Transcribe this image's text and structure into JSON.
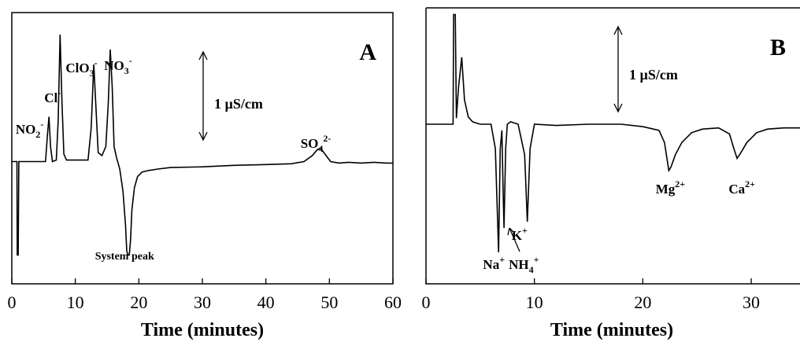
{
  "chart_data": [
    {
      "type": "line",
      "panel": "A",
      "xlabel": "Time (minutes)",
      "ylabel": "",
      "xlim": [
        0,
        60
      ],
      "xticks": [
        0,
        10,
        20,
        30,
        40,
        50,
        60
      ],
      "scale_bar": "1 µS/cm",
      "trace": {
        "x": [
          0,
          0.8,
          0.85,
          1.0,
          1.1,
          1.3,
          5.3,
          5.6,
          5.85,
          6.1,
          6.4,
          7.0,
          7.3,
          7.6,
          7.9,
          8.2,
          8.6,
          12.0,
          12.5,
          12.9,
          13.2,
          13.6,
          14.2,
          14.8,
          15.2,
          15.5,
          15.8,
          16.1,
          16.5,
          17.0,
          17.5,
          17.9,
          18.1,
          18.3,
          18.5,
          18.7,
          18.9,
          19.3,
          19.8,
          20.5,
          21.5,
          23.0,
          25,
          30,
          35,
          40,
          44,
          46,
          47.3,
          48.1,
          48.6,
          49.3,
          50.2,
          51.5,
          53,
          55,
          57,
          59,
          60
        ],
        "y": [
          0.1,
          0.1,
          -1.15,
          -1.15,
          0.1,
          0.1,
          0.1,
          0.45,
          0.7,
          0.3,
          0.1,
          0.12,
          0.65,
          1.8,
          0.9,
          0.2,
          0.12,
          0.12,
          0.55,
          1.4,
          0.9,
          0.22,
          0.18,
          0.3,
          0.9,
          1.6,
          1.1,
          0.3,
          0.15,
          0.0,
          -0.3,
          -0.75,
          -1.1,
          -1.15,
          -1.15,
          -0.95,
          -0.55,
          -0.25,
          -0.1,
          -0.04,
          -0.02,
          0.0,
          0.02,
          0.03,
          0.05,
          0.06,
          0.07,
          0.1,
          0.18,
          0.26,
          0.28,
          0.2,
          0.1,
          0.08,
          0.09,
          0.08,
          0.09,
          0.08,
          0.08
        ]
      },
      "annotations": [
        {
          "text": "NO",
          "sub": "2",
          "sup": "-",
          "x": 6.0
        },
        {
          "text": "Cl",
          "sub": "",
          "sup": "-",
          "x": 7.9
        },
        {
          "text": "ClO",
          "sub": "3",
          "sup": "-",
          "x": 13.2
        },
        {
          "text": "NO",
          "sub": "3",
          "sup": "-",
          "x": 15.5
        },
        {
          "text": "SO",
          "sub": "4",
          "sup": "2-",
          "x": 48.6
        },
        {
          "text": "System peak",
          "sub": "",
          "sup": "",
          "x": 18.5
        }
      ]
    },
    {
      "type": "line",
      "panel": "B",
      "xlabel": "Time (minutes)",
      "ylabel": "",
      "xlim": [
        0,
        34.5
      ],
      "xticks": [
        0,
        10,
        20,
        30
      ],
      "scale_bar": "1 µS/cm",
      "trace": {
        "x": [
          0,
          2.5,
          2.55,
          2.7,
          2.8,
          3.0,
          3.3,
          3.55,
          3.9,
          4.3,
          5,
          6,
          6.4,
          6.7,
          6.85,
          7.0,
          7.1,
          7.2,
          7.35,
          7.5,
          7.8,
          8.5,
          9.1,
          9.35,
          9.6,
          10.0,
          12,
          15,
          18,
          20,
          21.5,
          22.0,
          22.4,
          22.6,
          23.0,
          23.6,
          24.5,
          25.5,
          27,
          28.0,
          28.4,
          28.7,
          29.0,
          29.6,
          30.5,
          31.5,
          33,
          34.5
        ],
        "y": [
          0.0,
          0.0,
          0.9,
          0.9,
          0.05,
          0.3,
          0.55,
          0.2,
          0.06,
          0.02,
          0.0,
          0.0,
          -0.2,
          -1.05,
          -0.2,
          -0.05,
          -0.5,
          -0.85,
          -0.2,
          0.0,
          0.02,
          0.0,
          -0.25,
          -0.8,
          -0.2,
          0.0,
          -0.01,
          0.0,
          0.0,
          -0.02,
          -0.05,
          -0.15,
          -0.38,
          -0.35,
          -0.25,
          -0.15,
          -0.07,
          -0.04,
          -0.03,
          -0.08,
          -0.2,
          -0.28,
          -0.24,
          -0.15,
          -0.07,
          -0.04,
          -0.03,
          -0.03
        ]
      },
      "annotations": [
        {
          "text": "Na",
          "sub": "",
          "sup": "+",
          "x": 6.7
        },
        {
          "text": "NH",
          "sub": "4",
          "sup": "+",
          "x": 7.2
        },
        {
          "text": "K",
          "sub": "",
          "sup": "+",
          "x": 9.35
        },
        {
          "text": "Mg",
          "sub": "",
          "sup": "2+",
          "x": 22.4
        },
        {
          "text": "Ca",
          "sub": "",
          "sup": "2+",
          "x": 28.7
        }
      ]
    }
  ]
}
